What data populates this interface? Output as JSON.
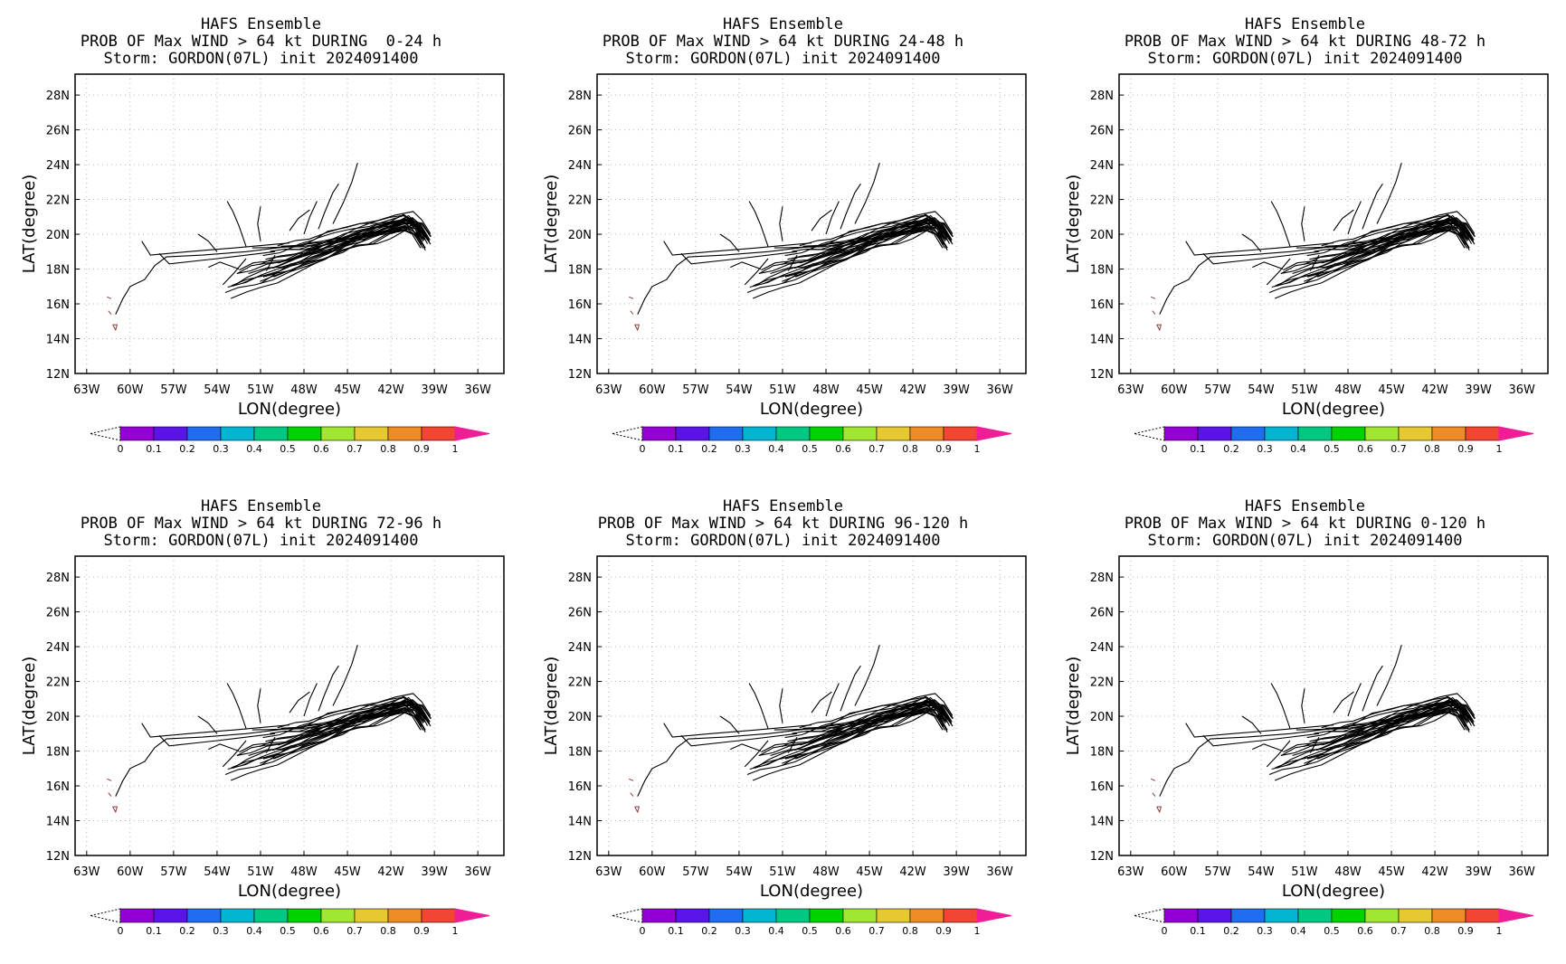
{
  "panels": [
    {
      "title_lines": [
        "HAFS Ensemble",
        "PROB OF Max WIND > 64 kt DURING  0-24 h",
        "Storm: GORDON(07L) init 2024091400"
      ]
    },
    {
      "title_lines": [
        "HAFS Ensemble",
        "PROB OF Max WIND > 64 kt DURING 24-48 h",
        "Storm: GORDON(07L) init 2024091400"
      ]
    },
    {
      "title_lines": [
        "HAFS Ensemble",
        "PROB OF Max WIND > 64 kt DURING 48-72 h",
        "Storm: GORDON(07L) init 2024091400"
      ]
    },
    {
      "title_lines": [
        "HAFS Ensemble",
        "PROB OF Max WIND > 64 kt DURING 72-96 h",
        "Storm: GORDON(07L) init 2024091400"
      ]
    },
    {
      "title_lines": [
        "HAFS Ensemble",
        "PROB OF Max WIND > 64 kt DURING 96-120 h",
        "Storm: GORDON(07L) init 2024091400"
      ]
    },
    {
      "title_lines": [
        "HAFS Ensemble",
        "PROB OF Max WIND > 64 kt DURING 0-120 h",
        "Storm: GORDON(07L) init 2024091400"
      ]
    }
  ],
  "axes": {
    "xlabel": "LON(degree)",
    "ylabel": "LAT(degree)",
    "x_ticks": [
      "63W",
      "60W",
      "57W",
      "54W",
      "51W",
      "48W",
      "45W",
      "42W",
      "39W",
      "36W"
    ],
    "x_values": [
      -63,
      -60,
      -57,
      -54,
      -51,
      -48,
      -45,
      -42,
      -39,
      -36
    ],
    "y_ticks": [
      "12N",
      "14N",
      "16N",
      "18N",
      "20N",
      "22N",
      "24N",
      "26N",
      "28N"
    ],
    "y_values": [
      12,
      14,
      16,
      18,
      20,
      22,
      24,
      26,
      28
    ],
    "xlim": [
      -63.8,
      -34.2
    ],
    "ylim": [
      12,
      29.2
    ],
    "grid": true
  },
  "colorbar": {
    "labels": [
      "0",
      "0.1",
      "0.2",
      "0.3",
      "0.4",
      "0.5",
      "0.6",
      "0.7",
      "0.8",
      "0.9",
      "1"
    ],
    "colors": [
      "#9400d3",
      "#5a14e6",
      "#1f6ef0",
      "#00b4d2",
      "#00c882",
      "#00d200",
      "#a0e632",
      "#e6c832",
      "#f08c28",
      "#f04632"
    ],
    "under_color": "#ffffff",
    "over_color": "#f01e96"
  },
  "track_style": {
    "color": "#000000"
  },
  "islands_color": "#8b3a3a"
}
